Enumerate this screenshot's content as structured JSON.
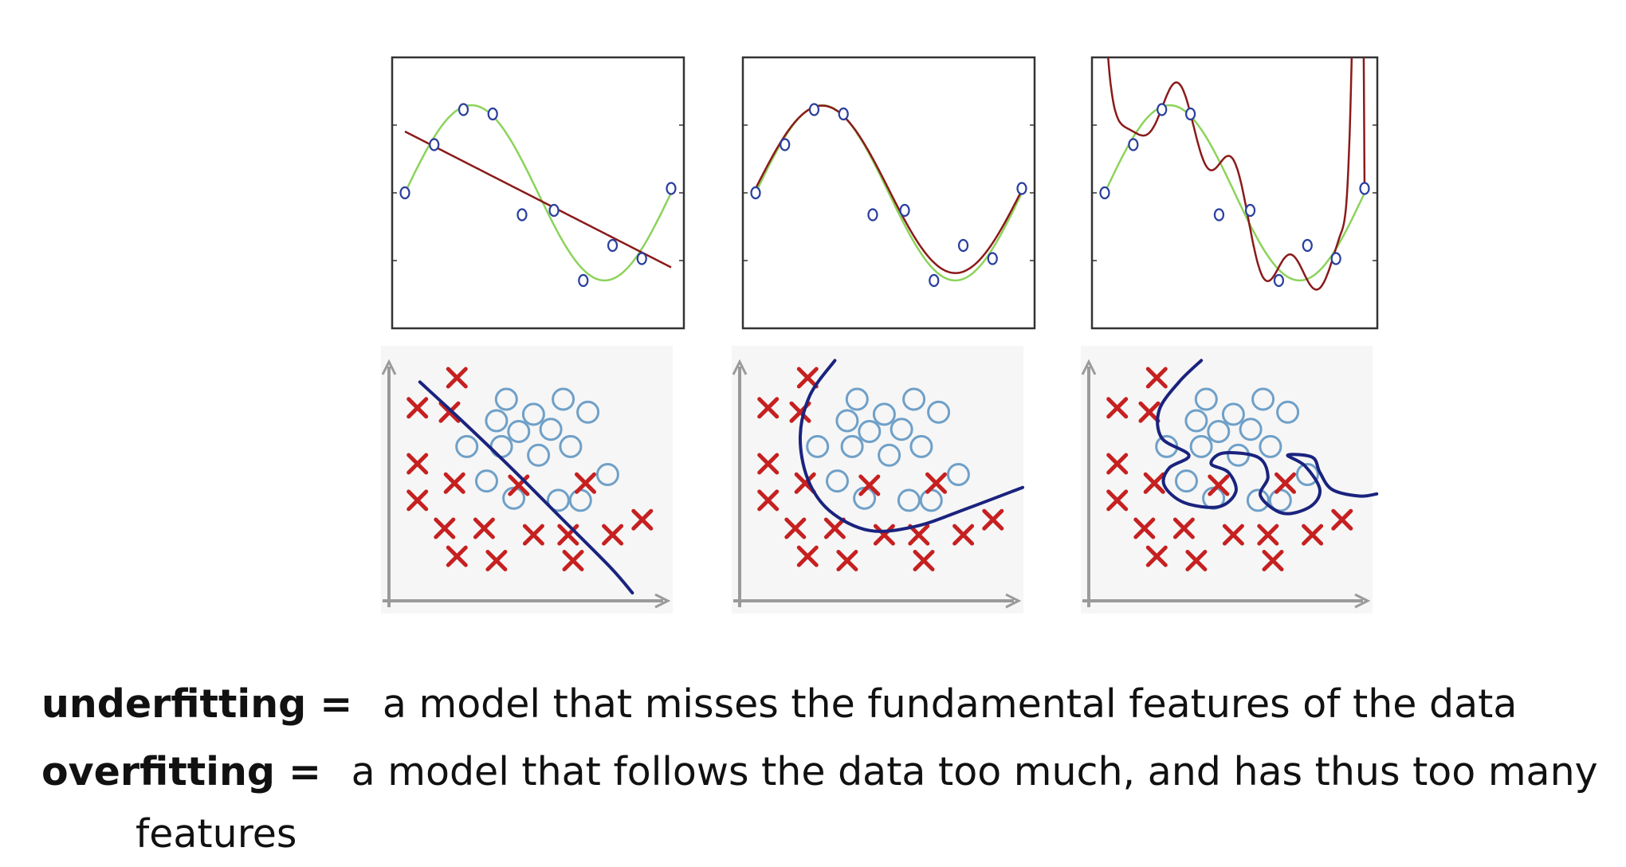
{
  "definitions": [
    {
      "term": "underfitting =",
      "text": "a model that misses the fundamental features of the data"
    },
    {
      "term": "overfitting =",
      "text": "a model that follows the data too much, and has thus too many",
      "continuation": "features"
    }
  ],
  "colors": {
    "true_curve": "#8cd35a",
    "fit_curve": "#8b1a1a",
    "points": "#2a3f9e",
    "circles": "#6fa0c8",
    "crosses": "#c62020",
    "boundary": "#1a237e",
    "axes": "#9a9a9a"
  },
  "chart_data": [
    {
      "type": "line",
      "panel": "regression-underfit",
      "title": "",
      "xlabel": "",
      "ylabel": "",
      "true_function": "sin(2πx)",
      "fit_degree": 1,
      "x": [
        0.0,
        0.11,
        0.22,
        0.33,
        0.44,
        0.56,
        0.67,
        0.78,
        0.89,
        1.0
      ],
      "points": [
        0.0,
        0.55,
        0.95,
        0.9,
        -0.25,
        -0.2,
        -1.0,
        -0.6,
        -0.75,
        0.05
      ]
    },
    {
      "type": "line",
      "panel": "regression-goodfit",
      "title": "",
      "xlabel": "",
      "ylabel": "",
      "true_function": "sin(2πx)",
      "fit_degree": 3,
      "x": [
        0.0,
        0.11,
        0.22,
        0.33,
        0.44,
        0.56,
        0.67,
        0.78,
        0.89,
        1.0
      ],
      "points": [
        0.0,
        0.55,
        0.95,
        0.9,
        -0.25,
        -0.2,
        -1.0,
        -0.6,
        -0.75,
        0.05
      ]
    },
    {
      "type": "line",
      "panel": "regression-overfit",
      "title": "",
      "xlabel": "",
      "ylabel": "",
      "true_function": "sin(2πx)",
      "fit_degree": 9,
      "x": [
        0.0,
        0.11,
        0.22,
        0.33,
        0.44,
        0.56,
        0.67,
        0.78,
        0.89,
        1.0
      ],
      "points": [
        0.0,
        0.55,
        0.95,
        0.9,
        -0.25,
        -0.2,
        -1.0,
        -0.6,
        -0.75,
        0.05
      ]
    },
    {
      "type": "scatter",
      "panel": "classification-underfit",
      "boundary": "linear",
      "circles": [
        [
          4.3,
          9.0
        ],
        [
          6.6,
          9.0
        ],
        [
          3.9,
          8.0
        ],
        [
          5.4,
          8.3
        ],
        [
          4.8,
          7.5
        ],
        [
          6.1,
          7.6
        ],
        [
          7.6,
          8.4
        ],
        [
          2.7,
          6.8
        ],
        [
          4.1,
          6.8
        ],
        [
          5.6,
          6.4
        ],
        [
          6.9,
          6.8
        ],
        [
          3.5,
          5.2
        ],
        [
          8.4,
          5.5
        ],
        [
          4.6,
          4.4
        ],
        [
          6.4,
          4.3
        ],
        [
          7.3,
          4.3
        ]
      ],
      "crosses": [
        [
          2.3,
          10.0
        ],
        [
          0.7,
          8.6
        ],
        [
          2.0,
          8.4
        ],
        [
          0.7,
          6.0
        ],
        [
          2.2,
          5.1
        ],
        [
          4.8,
          5.0
        ],
        [
          7.5,
          5.1
        ],
        [
          0.7,
          4.3
        ],
        [
          1.8,
          3.0
        ],
        [
          3.4,
          3.0
        ],
        [
          5.4,
          2.7
        ],
        [
          6.8,
          2.7
        ],
        [
          8.6,
          2.7
        ],
        [
          9.8,
          3.4
        ],
        [
          2.3,
          1.7
        ],
        [
          3.9,
          1.5
        ],
        [
          7.0,
          1.5
        ]
      ]
    },
    {
      "type": "scatter",
      "panel": "classification-goodfit",
      "boundary": "smooth",
      "circles": [
        [
          4.3,
          9.0
        ],
        [
          6.6,
          9.0
        ],
        [
          3.9,
          8.0
        ],
        [
          5.4,
          8.3
        ],
        [
          4.8,
          7.5
        ],
        [
          6.1,
          7.6
        ],
        [
          7.6,
          8.4
        ],
        [
          2.7,
          6.8
        ],
        [
          4.1,
          6.8
        ],
        [
          5.6,
          6.4
        ],
        [
          6.9,
          6.8
        ],
        [
          3.5,
          5.2
        ],
        [
          8.4,
          5.5
        ],
        [
          4.6,
          4.4
        ],
        [
          6.4,
          4.3
        ],
        [
          7.3,
          4.3
        ]
      ],
      "crosses": [
        [
          2.3,
          10.0
        ],
        [
          0.7,
          8.6
        ],
        [
          2.0,
          8.4
        ],
        [
          0.7,
          6.0
        ],
        [
          2.2,
          5.1
        ],
        [
          4.8,
          5.0
        ],
        [
          7.5,
          5.1
        ],
        [
          0.7,
          4.3
        ],
        [
          1.8,
          3.0
        ],
        [
          3.4,
          3.0
        ],
        [
          5.4,
          2.7
        ],
        [
          6.8,
          2.7
        ],
        [
          8.6,
          2.7
        ],
        [
          9.8,
          3.4
        ],
        [
          2.3,
          1.7
        ],
        [
          3.9,
          1.5
        ],
        [
          7.0,
          1.5
        ]
      ]
    },
    {
      "type": "scatter",
      "panel": "classification-overfit",
      "boundary": "complex",
      "circles": [
        [
          4.3,
          9.0
        ],
        [
          6.6,
          9.0
        ],
        [
          3.9,
          8.0
        ],
        [
          5.4,
          8.3
        ],
        [
          4.8,
          7.5
        ],
        [
          6.1,
          7.6
        ],
        [
          7.6,
          8.4
        ],
        [
          2.7,
          6.8
        ],
        [
          4.1,
          6.8
        ],
        [
          5.6,
          6.4
        ],
        [
          6.9,
          6.8
        ],
        [
          3.5,
          5.2
        ],
        [
          8.4,
          5.5
        ],
        [
          4.6,
          4.4
        ],
        [
          6.4,
          4.3
        ],
        [
          7.3,
          4.3
        ]
      ],
      "crosses": [
        [
          2.3,
          10.0
        ],
        [
          0.7,
          8.6
        ],
        [
          2.0,
          8.4
        ],
        [
          0.7,
          6.0
        ],
        [
          2.2,
          5.1
        ],
        [
          4.8,
          5.0
        ],
        [
          7.5,
          5.1
        ],
        [
          0.7,
          4.3
        ],
        [
          1.8,
          3.0
        ],
        [
          3.4,
          3.0
        ],
        [
          5.4,
          2.7
        ],
        [
          6.8,
          2.7
        ],
        [
          8.6,
          2.7
        ],
        [
          9.8,
          3.4
        ],
        [
          2.3,
          1.7
        ],
        [
          3.9,
          1.5
        ],
        [
          7.0,
          1.5
        ]
      ]
    }
  ]
}
